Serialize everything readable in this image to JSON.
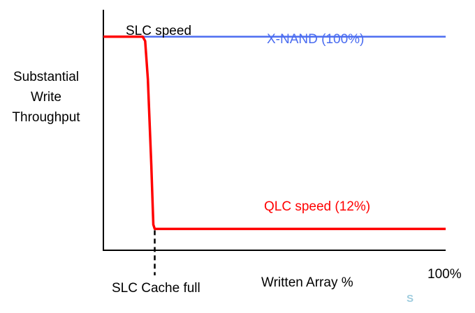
{
  "chart_data": {
    "type": "line",
    "title": "",
    "ylabel": [
      "Substantial",
      "Write",
      "Throughput"
    ],
    "xlabel": "Written Array %",
    "x_end_label": "100%",
    "annotations": {
      "slc_speed": "SLC speed",
      "slc_cache_full": "SLC Cache full"
    },
    "xlim": [
      0,
      100
    ],
    "ylim": [
      0,
      110
    ],
    "slc_cache_full_x": 15,
    "series": [
      {
        "name": "X-NAND (100%)",
        "color": "#4a6cf0",
        "points": [
          [
            0,
            100
          ],
          [
            100,
            100
          ]
        ]
      },
      {
        "name": "QLC speed (12%)",
        "color": "#ff0000",
        "points": [
          [
            0,
            100
          ],
          [
            11.5,
            100
          ],
          [
            12.2,
            98
          ],
          [
            13,
            80
          ],
          [
            14,
            40
          ],
          [
            14.6,
            12
          ],
          [
            15,
            10
          ],
          [
            100,
            10
          ]
        ]
      }
    ]
  },
  "watermark": "S"
}
